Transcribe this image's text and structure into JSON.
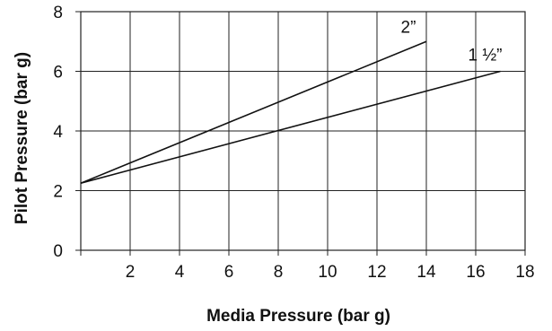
{
  "chart_data": {
    "type": "line",
    "title": "",
    "xlabel": "Media Pressure (bar g)",
    "ylabel": "Pilot Pressure (bar g)",
    "xlim": [
      0,
      18
    ],
    "ylim": [
      0,
      8
    ],
    "x_ticks": [
      2,
      4,
      6,
      8,
      10,
      12,
      14,
      16,
      18
    ],
    "y_ticks": [
      0,
      2,
      4,
      6,
      8
    ],
    "grid": true,
    "legend": "none",
    "series": [
      {
        "name": "2”",
        "x": [
          0,
          14
        ],
        "y": [
          2.25,
          7.0
        ]
      },
      {
        "name": "1 ½”",
        "x": [
          0,
          17
        ],
        "y": [
          2.25,
          6.0
        ]
      }
    ]
  }
}
